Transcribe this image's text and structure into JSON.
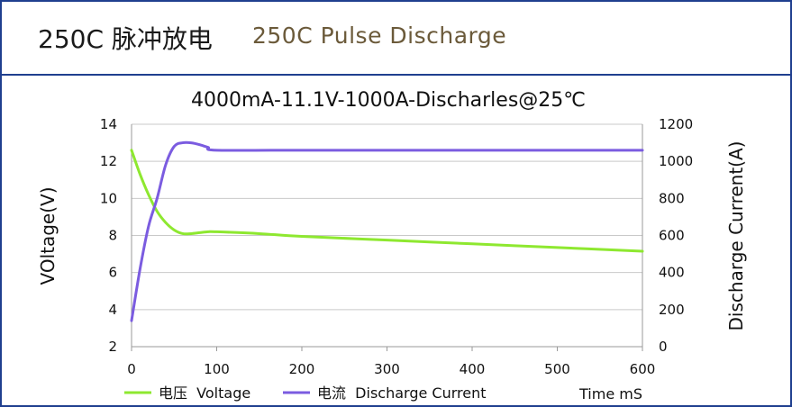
{
  "header": {
    "title_cn": "250C 脉冲放电",
    "title_en": "250C Pulse Discharge"
  },
  "chart_data": {
    "type": "line",
    "title": "4000mA-11.1V-1000A-Discharles@25℃",
    "xlabel": "Time mS",
    "ylabel_left": "VOltage(V)",
    "ylabel_right": "Discharge Current(A)",
    "xlim": [
      0,
      600
    ],
    "ylim_left": [
      2,
      14
    ],
    "ylim_right": [
      0,
      1200
    ],
    "x_ticks": [
      "0",
      "100",
      "200",
      "300",
      "400",
      "500",
      "600"
    ],
    "y_left_ticks": [
      "2",
      "4",
      "6",
      "8",
      "10",
      "12",
      "14"
    ],
    "y_right_ticks": [
      "0",
      "200",
      "400",
      "600",
      "800",
      "1000",
      "1200"
    ],
    "grid": true,
    "legend_position": "bottom",
    "series": [
      {
        "name": "电压  Voltage",
        "axis": "left",
        "color": "#8ee830",
        "x": [
          0,
          10,
          20,
          30,
          40,
          50,
          60,
          70,
          80,
          90,
          100,
          150,
          200,
          300,
          400,
          500,
          600
        ],
        "y": [
          12.6,
          11.3,
          10.2,
          9.3,
          8.7,
          8.3,
          8.1,
          8.1,
          8.15,
          8.2,
          8.2,
          8.1,
          7.95,
          7.75,
          7.55,
          7.35,
          7.15
        ]
      },
      {
        "name": "电流  Discharge Current",
        "axis": "right",
        "color": "#7b5ce0",
        "x": [
          0,
          10,
          20,
          30,
          40,
          50,
          60,
          70,
          80,
          90,
          100,
          200,
          300,
          400,
          500,
          600
        ],
        "y": [
          140,
          420,
          650,
          800,
          980,
          1080,
          1100,
          1100,
          1090,
          1075,
          1060,
          1060,
          1060,
          1060,
          1060,
          1060
        ]
      }
    ]
  }
}
